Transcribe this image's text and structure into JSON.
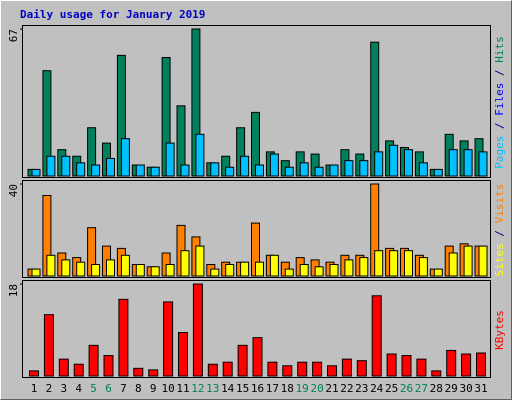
{
  "chart_data": [
    {
      "type": "bar",
      "title": "Daily usage for January 2019",
      "ylabel_parts": [
        "Pages",
        " / ",
        "Files",
        " / ",
        "Hits"
      ],
      "ylabel_colors": [
        "#00c0ff",
        "#000080",
        "#0000ff",
        "#000080",
        "#00805c"
      ],
      "ylim": [
        0,
        67
      ],
      "yticks": [
        67
      ],
      "series": [
        {
          "name": "Hits",
          "color": "#00805c",
          "values": [
            3,
            48,
            12,
            9,
            22,
            15,
            55,
            5,
            4,
            54,
            32,
            67,
            6,
            9,
            22,
            29,
            11,
            7,
            11,
            10,
            5,
            12,
            10,
            61,
            16,
            13,
            11,
            3,
            19,
            16,
            17
          ]
        },
        {
          "name": "Pages",
          "color": "#00c0ff",
          "values": [
            3,
            9,
            9,
            6,
            5,
            8,
            17,
            5,
            4,
            15,
            5,
            19,
            6,
            4,
            9,
            5,
            10,
            4,
            6,
            4,
            5,
            7,
            7,
            11,
            14,
            12,
            6,
            3,
            12,
            12,
            11
          ]
        }
      ]
    },
    {
      "type": "bar",
      "ylabel_parts": [
        "Sites",
        " / ",
        "Visits"
      ],
      "ylabel_colors": [
        "#ffff00",
        "#000080",
        "#ff8000"
      ],
      "ylim": [
        0,
        40
      ],
      "yticks": [
        40
      ],
      "series": [
        {
          "name": "Visits",
          "color": "#ff8000",
          "values": [
            3,
            35,
            10,
            8,
            21,
            13,
            12,
            5,
            4,
            10,
            22,
            17,
            5,
            6,
            6,
            23,
            9,
            6,
            8,
            7,
            6,
            9,
            9,
            40,
            12,
            12,
            9,
            3,
            13,
            14,
            13
          ]
        },
        {
          "name": "Sites",
          "color": "#ffff00",
          "values": [
            3,
            9,
            7,
            6,
            5,
            7,
            9,
            5,
            4,
            5,
            11,
            13,
            3,
            5,
            6,
            6,
            9,
            3,
            5,
            4,
            5,
            7,
            8,
            11,
            11,
            11,
            8,
            3,
            10,
            13,
            13
          ]
        }
      ]
    },
    {
      "type": "bar",
      "ylabel_parts": [
        "KBytes"
      ],
      "ylabel_colors": [
        "#ff0000"
      ],
      "ylim": [
        0,
        18
      ],
      "yticks": [
        18
      ],
      "categories": [
        "1",
        "2",
        "3",
        "4",
        "5",
        "6",
        "7",
        "8",
        "9",
        "10",
        "11",
        "12",
        "13",
        "14",
        "15",
        "16",
        "17",
        "18",
        "19",
        "20",
        "21",
        "22",
        "23",
        "24",
        "25",
        "26",
        "27",
        "28",
        "29",
        "30",
        "31"
      ],
      "category_color": "#000000",
      "highlight_color": "#00805c",
      "highlight_indices": [
        4,
        5,
        11,
        12,
        18,
        19,
        25,
        26
      ],
      "series": [
        {
          "name": "KBytes",
          "color": "#ff0000",
          "values": [
            1,
            12,
            3.3,
            2.3,
            6,
            4,
            15,
            1.5,
            1.2,
            14.5,
            8.5,
            18,
            2.3,
            2.7,
            6,
            7.5,
            2.7,
            2,
            2.7,
            2.7,
            2,
            3.3,
            3,
            15.7,
            4.3,
            4,
            3.3,
            1,
            5,
            4.3,
            4.5
          ]
        }
      ]
    }
  ]
}
